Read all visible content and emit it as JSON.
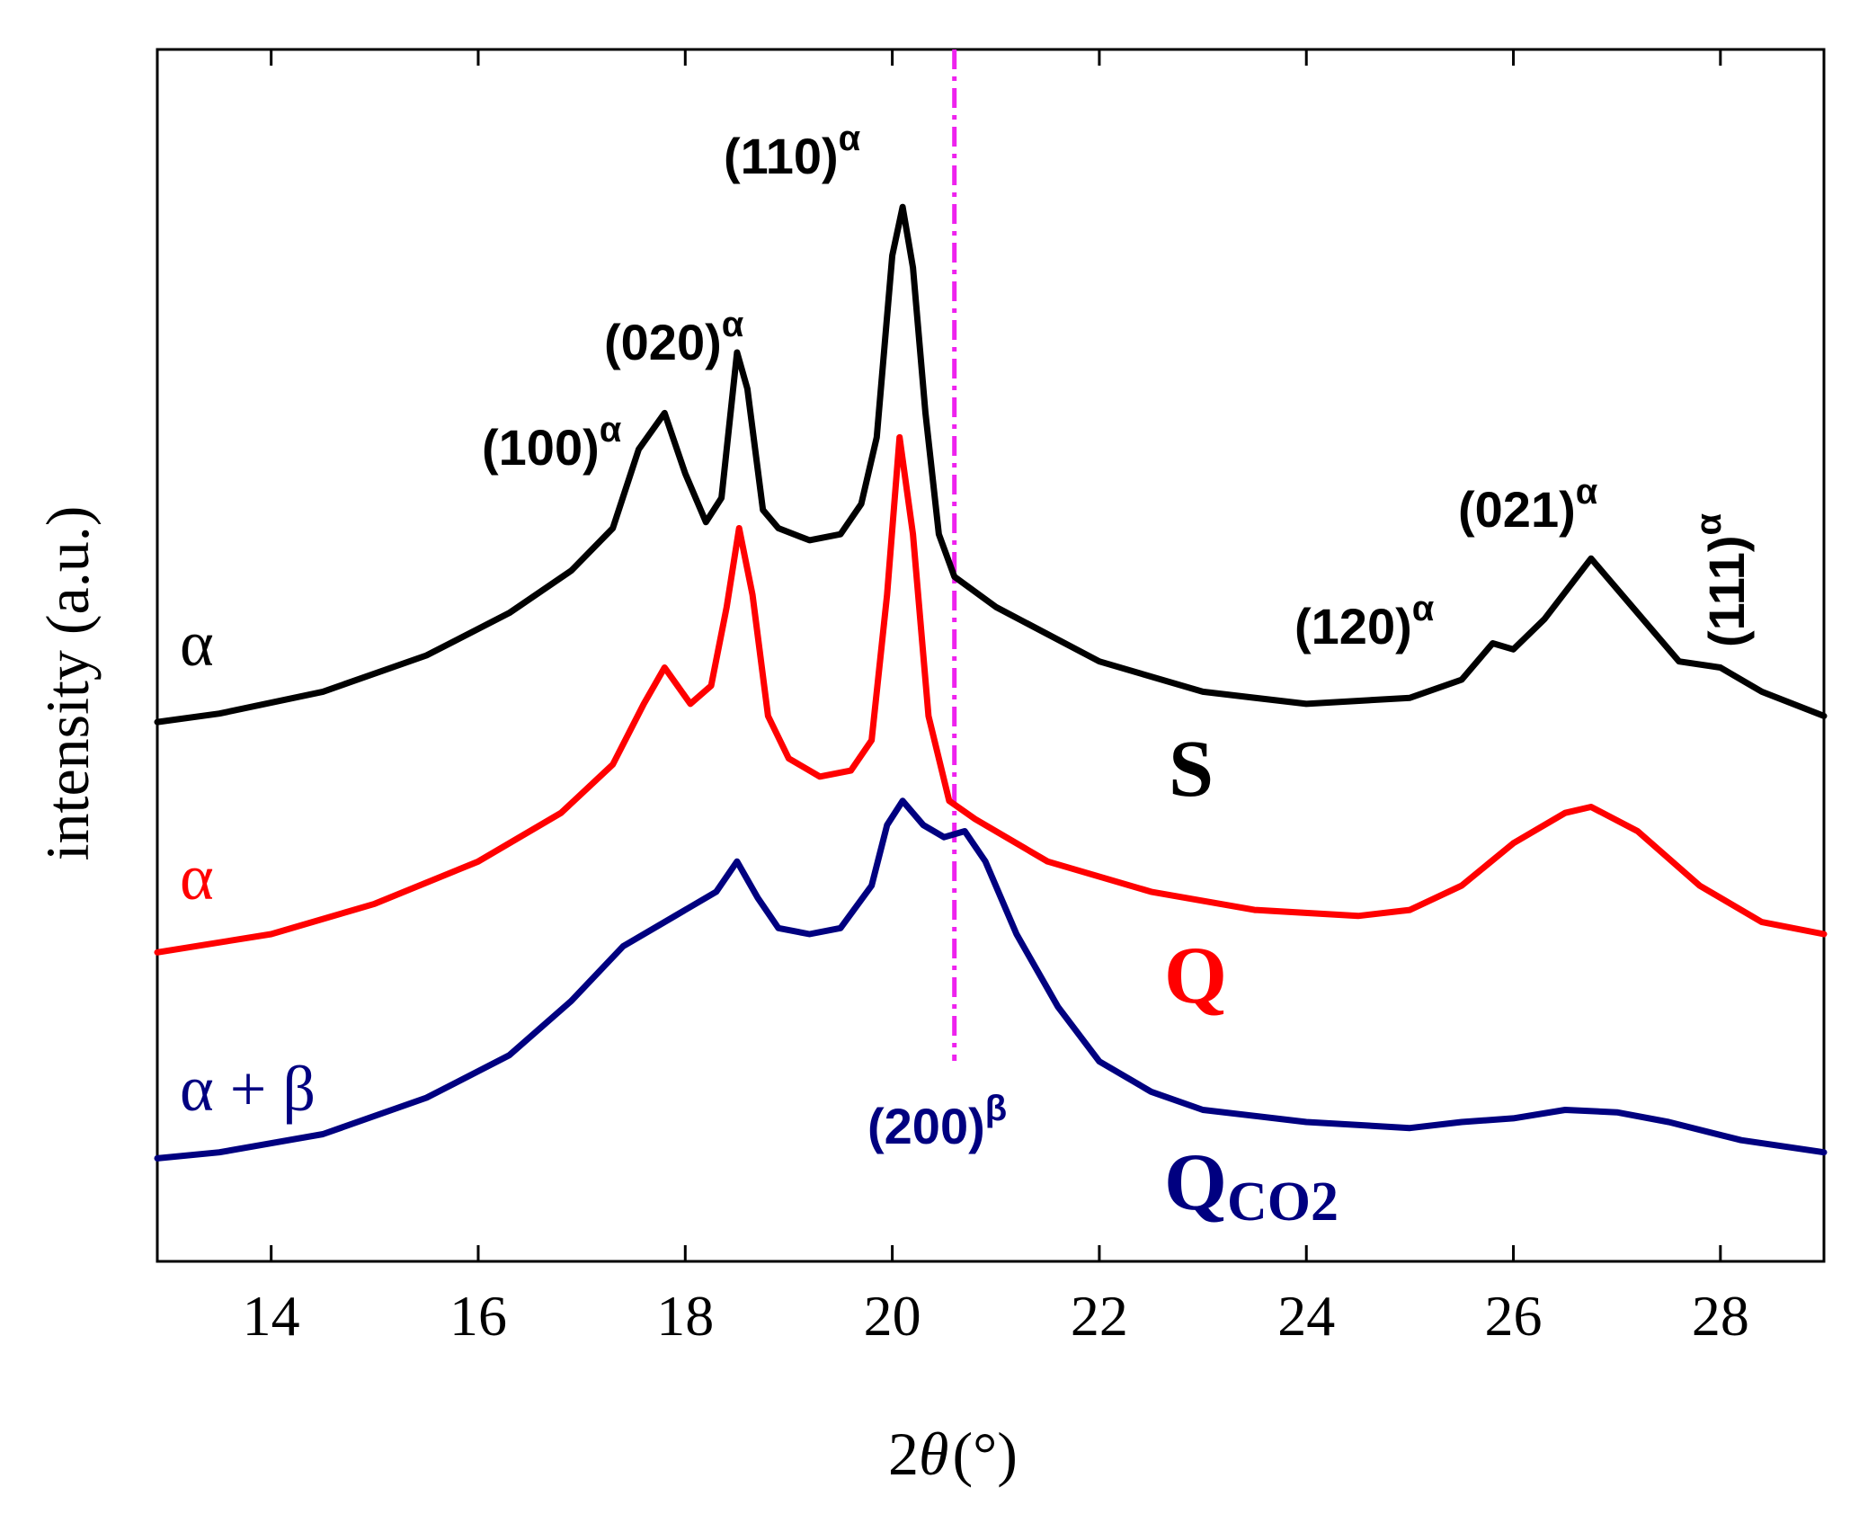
{
  "chart_data": {
    "type": "line",
    "xlabel_prefix": "2",
    "xlabel_var": "θ",
    "xlabel_unit": "(°)",
    "ylabel": "intensity (a.u.)",
    "xlim": [
      12.9,
      29.0
    ],
    "ylim": [
      0,
      100
    ],
    "x_ticks": [
      14,
      16,
      18,
      20,
      22,
      24,
      26,
      28
    ],
    "y_ticks_shown": false,
    "reference_line": {
      "x": 20.6,
      "label_main": "(200)",
      "label_sup": "β",
      "color": "#ee22ee"
    },
    "series": [
      {
        "name": "S",
        "sample_label": "S",
        "phase_label": "α",
        "color": "#000000",
        "points": [
          [
            12.9,
            44.5
          ],
          [
            13.5,
            45.2
          ],
          [
            14.5,
            47.0
          ],
          [
            15.5,
            50.0
          ],
          [
            16.3,
            53.5
          ],
          [
            16.9,
            57.0
          ],
          [
            17.3,
            60.5
          ],
          [
            17.55,
            67
          ],
          [
            17.8,
            70.0
          ],
          [
            18.0,
            65
          ],
          [
            18.2,
            61.0
          ],
          [
            18.35,
            63
          ],
          [
            18.5,
            75.0
          ],
          [
            18.6,
            72
          ],
          [
            18.75,
            62
          ],
          [
            18.9,
            60.5
          ],
          [
            19.2,
            59.5
          ],
          [
            19.5,
            60.0
          ],
          [
            19.7,
            62.5
          ],
          [
            19.85,
            68
          ],
          [
            20.0,
            83
          ],
          [
            20.1,
            87.0
          ],
          [
            20.2,
            82
          ],
          [
            20.32,
            70
          ],
          [
            20.45,
            60
          ],
          [
            20.6,
            56.5
          ],
          [
            21.0,
            54.0
          ],
          [
            22.0,
            49.5
          ],
          [
            23.0,
            47.0
          ],
          [
            24.0,
            46.0
          ],
          [
            25.0,
            46.5
          ],
          [
            25.5,
            48.0
          ],
          [
            25.8,
            51.0
          ],
          [
            26.0,
            50.5
          ],
          [
            26.3,
            53.0
          ],
          [
            26.75,
            58.0
          ],
          [
            27.2,
            53.5
          ],
          [
            27.6,
            49.5
          ],
          [
            28.0,
            49.0
          ],
          [
            28.4,
            47.0
          ],
          [
            29.0,
            45.0
          ]
        ]
      },
      {
        "name": "Q",
        "sample_label": "Q",
        "phase_label": "α",
        "color": "#ff0000",
        "points": [
          [
            12.9,
            25.5
          ],
          [
            14.0,
            27.0
          ],
          [
            15.0,
            29.5
          ],
          [
            16.0,
            33.0
          ],
          [
            16.8,
            37.0
          ],
          [
            17.3,
            41.0
          ],
          [
            17.6,
            46.0
          ],
          [
            17.8,
            49.0
          ],
          [
            18.05,
            46.0
          ],
          [
            18.25,
            47.5
          ],
          [
            18.4,
            54
          ],
          [
            18.52,
            60.5
          ],
          [
            18.65,
            55
          ],
          [
            18.8,
            45
          ],
          [
            19.0,
            41.5
          ],
          [
            19.3,
            40.0
          ],
          [
            19.6,
            40.5
          ],
          [
            19.8,
            43
          ],
          [
            19.95,
            55
          ],
          [
            20.07,
            68.0
          ],
          [
            20.2,
            60
          ],
          [
            20.35,
            45
          ],
          [
            20.55,
            38.0
          ],
          [
            20.8,
            36.5
          ],
          [
            21.5,
            33.0
          ],
          [
            22.5,
            30.5
          ],
          [
            23.5,
            29.0
          ],
          [
            24.5,
            28.5
          ],
          [
            25.0,
            29.0
          ],
          [
            25.5,
            31.0
          ],
          [
            26.0,
            34.5
          ],
          [
            26.5,
            37.0
          ],
          [
            26.75,
            37.5
          ],
          [
            27.2,
            35.5
          ],
          [
            27.8,
            31.0
          ],
          [
            28.4,
            28.0
          ],
          [
            29.0,
            27.0
          ]
        ]
      },
      {
        "name": "QCO2",
        "sample_label": "Q",
        "sample_sub": "CO2",
        "phase_label": "α + β",
        "color": "#000080",
        "points": [
          [
            12.9,
            8.5
          ],
          [
            13.5,
            9.0
          ],
          [
            14.5,
            10.5
          ],
          [
            15.5,
            13.5
          ],
          [
            16.3,
            17.0
          ],
          [
            16.9,
            21.5
          ],
          [
            17.4,
            26.0
          ],
          [
            17.9,
            28.5
          ],
          [
            18.3,
            30.5
          ],
          [
            18.5,
            33.0
          ],
          [
            18.7,
            30.0
          ],
          [
            18.9,
            27.5
          ],
          [
            19.2,
            27.0
          ],
          [
            19.5,
            27.5
          ],
          [
            19.8,
            31.0
          ],
          [
            19.95,
            36.0
          ],
          [
            20.1,
            38.0
          ],
          [
            20.3,
            36.0
          ],
          [
            20.5,
            35.0
          ],
          [
            20.7,
            35.5
          ],
          [
            20.9,
            33.0
          ],
          [
            21.2,
            27.0
          ],
          [
            21.6,
            21.0
          ],
          [
            22.0,
            16.5
          ],
          [
            22.5,
            14.0
          ],
          [
            23.0,
            12.5
          ],
          [
            24.0,
            11.5
          ],
          [
            25.0,
            11.0
          ],
          [
            25.5,
            11.5
          ],
          [
            26.0,
            11.8
          ],
          [
            26.5,
            12.5
          ],
          [
            27.0,
            12.3
          ],
          [
            27.5,
            11.5
          ],
          [
            28.2,
            10.0
          ],
          [
            29.0,
            9.0
          ]
        ]
      }
    ],
    "peak_labels": [
      {
        "main": "(100)",
        "sup": "α"
      },
      {
        "main": "(020)",
        "sup": "α"
      },
      {
        "main": "(110)",
        "sup": "α"
      },
      {
        "main": "(120)",
        "sup": "α"
      },
      {
        "main": "(021)",
        "sup": "α"
      },
      {
        "main": "(111)",
        "sup": "α"
      }
    ]
  }
}
